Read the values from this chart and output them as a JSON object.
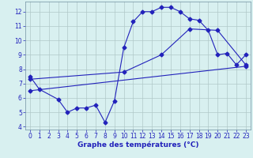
{
  "line1_x": [
    0,
    1,
    3,
    4,
    5,
    6,
    7,
    8,
    9,
    10,
    11,
    12,
    13,
    14,
    15,
    16,
    17,
    18,
    19,
    20,
    21,
    22,
    23
  ],
  "line1_y": [
    7.5,
    6.6,
    5.9,
    5.0,
    5.3,
    5.3,
    5.5,
    4.3,
    5.8,
    9.5,
    11.3,
    12.0,
    12.0,
    12.3,
    12.3,
    12.0,
    11.5,
    11.4,
    10.7,
    9.0,
    9.1,
    8.3,
    9.0
  ],
  "line2_x": [
    0,
    23
  ],
  "line2_y": [
    6.5,
    8.2
  ],
  "line3_x": [
    0,
    10,
    14,
    17,
    20,
    23
  ],
  "line3_y": [
    7.3,
    7.8,
    9.0,
    10.8,
    10.7,
    8.3
  ],
  "line_color": "#2222bb",
  "marker": "D",
  "marker_size": 2.5,
  "bg_color": "#d8f0f0",
  "grid_color": "#b0c8c8",
  "xlabel": "Graphe des températures (°C)",
  "xlim": [
    -0.5,
    23.5
  ],
  "ylim": [
    3.8,
    12.7
  ],
  "yticks": [
    4,
    5,
    6,
    7,
    8,
    9,
    10,
    11,
    12
  ],
  "xticks": [
    0,
    1,
    2,
    3,
    4,
    5,
    6,
    7,
    8,
    9,
    10,
    11,
    12,
    13,
    14,
    15,
    16,
    17,
    18,
    19,
    20,
    21,
    22,
    23
  ]
}
